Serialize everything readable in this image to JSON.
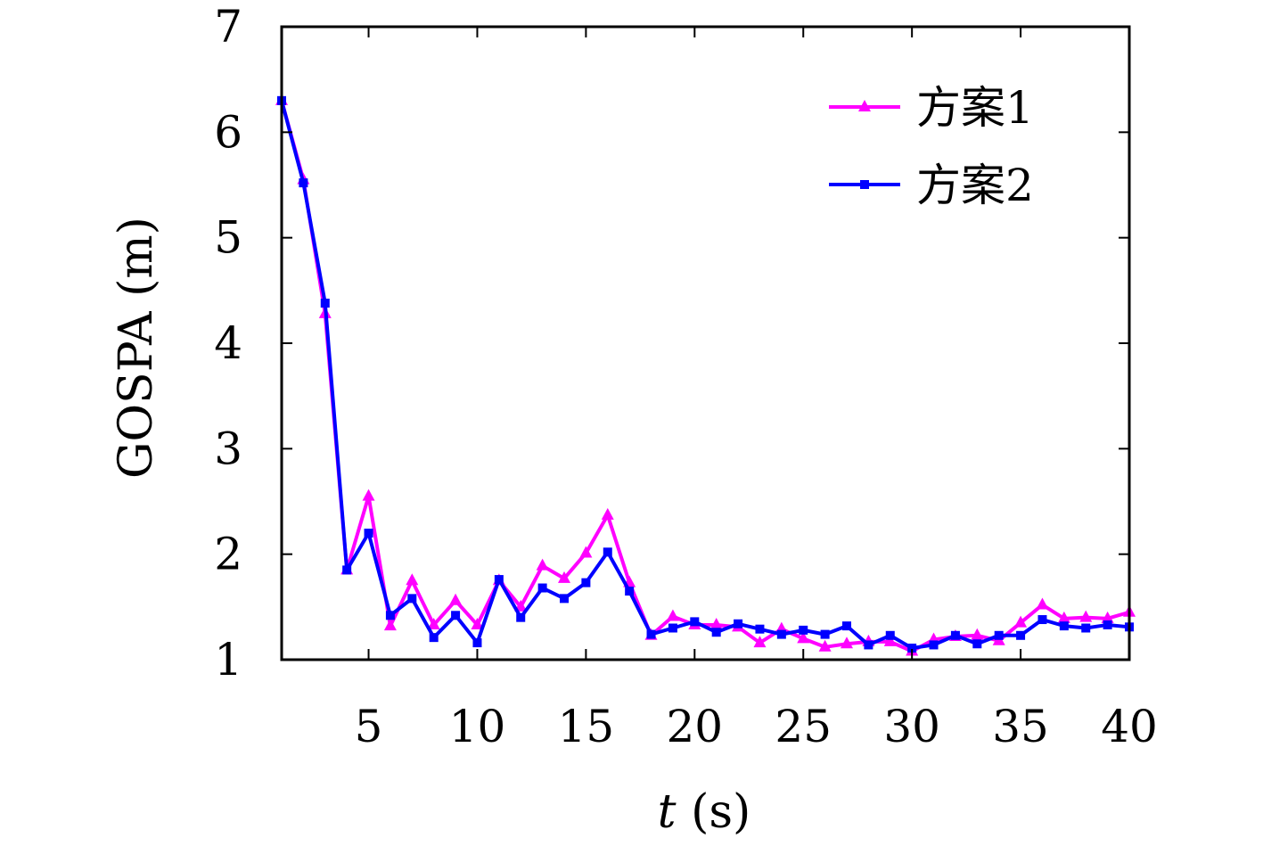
{
  "chart_data": {
    "type": "line",
    "xlabel_italic": "t",
    "xlabel_rest": " (s)",
    "ylabel": "GOSPA (m)",
    "xlim": [
      1,
      40
    ],
    "ylim": [
      1,
      7
    ],
    "xticks": [
      5,
      10,
      15,
      20,
      25,
      30,
      35,
      40
    ],
    "yticks": [
      1,
      2,
      3,
      4,
      5,
      6,
      7
    ],
    "grid": false,
    "legend_position": "top-right",
    "x": [
      1,
      2,
      3,
      4,
      5,
      6,
      7,
      8,
      9,
      10,
      11,
      12,
      13,
      14,
      15,
      16,
      17,
      18,
      19,
      20,
      21,
      22,
      23,
      24,
      25,
      26,
      27,
      28,
      29,
      30,
      31,
      32,
      33,
      34,
      35,
      36,
      37,
      38,
      39,
      40
    ],
    "series": [
      {
        "name": "方案1",
        "color": "#ff00ff",
        "marker": "triangle",
        "values": [
          6.3,
          5.55,
          4.28,
          1.85,
          2.55,
          1.32,
          1.75,
          1.33,
          1.56,
          1.33,
          1.75,
          1.5,
          1.89,
          1.77,
          2.01,
          2.37,
          1.73,
          1.23,
          1.41,
          1.33,
          1.33,
          1.31,
          1.16,
          1.29,
          1.2,
          1.12,
          1.15,
          1.17,
          1.17,
          1.08,
          1.19,
          1.22,
          1.23,
          1.18,
          1.35,
          1.52,
          1.39,
          1.4,
          1.39,
          1.45
        ]
      },
      {
        "name": "方案2",
        "color": "#0000ff",
        "marker": "square",
        "values": [
          6.3,
          5.52,
          4.38,
          1.85,
          2.2,
          1.42,
          1.58,
          1.21,
          1.42,
          1.16,
          1.76,
          1.4,
          1.68,
          1.58,
          1.73,
          2.02,
          1.65,
          1.24,
          1.3,
          1.36,
          1.26,
          1.34,
          1.29,
          1.24,
          1.28,
          1.24,
          1.32,
          1.14,
          1.23,
          1.11,
          1.14,
          1.23,
          1.15,
          1.23,
          1.23,
          1.38,
          1.32,
          1.3,
          1.33,
          1.31
        ]
      }
    ]
  }
}
